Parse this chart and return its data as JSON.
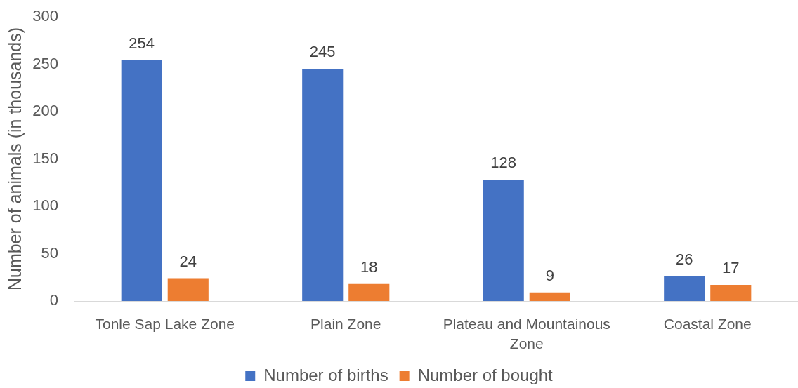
{
  "chart_data": {
    "type": "bar",
    "ylabel": "Number of animals (in thousands)",
    "categories": [
      "Tonle Sap Lake Zone",
      "Plain Zone",
      "Plateau and Mountainous Zone",
      "Coastal Zone"
    ],
    "series": [
      {
        "name": "Number of births",
        "color": "#4472c4",
        "values": [
          254,
          245,
          128,
          26
        ]
      },
      {
        "name": "Number of bought",
        "color": "#ed7d31",
        "values": [
          24,
          18,
          9,
          17
        ]
      }
    ],
    "ylim": [
      0,
      300
    ],
    "yticks": [
      0,
      50,
      100,
      150,
      200,
      250,
      300
    ],
    "grid": false,
    "data_labels": true,
    "legend": "bottom"
  }
}
